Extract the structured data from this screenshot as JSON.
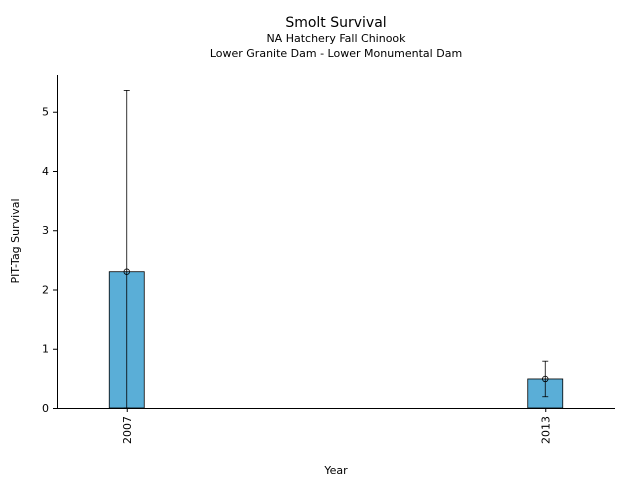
{
  "chart_data": {
    "type": "bar",
    "title": "Smolt Survival",
    "subtitle": [
      "NA Hatchery Fall Chinook",
      "Lower Granite Dam - Lower Monumental Dam"
    ],
    "xlabel": "Year",
    "ylabel": "PIT-Tag Survival",
    "categories": [
      "2007",
      "2013"
    ],
    "values": [
      2.3,
      0.49
    ],
    "error_bars": [
      {
        "low": 0.0,
        "high": 5.36
      },
      {
        "low": 0.19,
        "high": 0.79
      }
    ],
    "x_range": [
      2006.0,
      2014.0
    ],
    "ylim": [
      0,
      5.62
    ],
    "yticks": [
      0,
      1,
      2,
      3,
      4,
      5
    ],
    "grid": false,
    "legend": "none",
    "bar_color": "#5aaed7",
    "edge_color": "#000000"
  }
}
